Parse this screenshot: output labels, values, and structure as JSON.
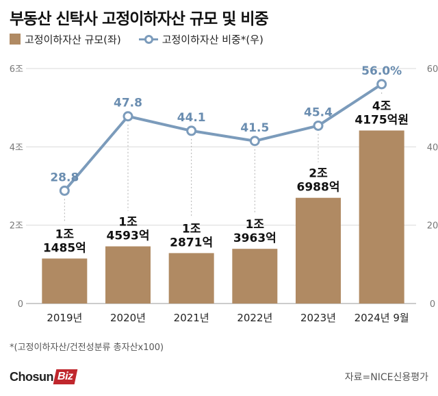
{
  "title": "부동산 신탁사 고정이하자산 규모 및 비중",
  "legend": {
    "bar_label": "고정이하자산 규모(좌)",
    "line_label": "고정이하자산 비중*(우)"
  },
  "footnote": "*(고정이하자산/건전성분류 총자산x100)",
  "source": "자료=NICE신용평가",
  "logo": {
    "part1": "Chosun",
    "part2": "Biz"
  },
  "colors": {
    "bar": "#B08A63",
    "line": "#7B9BBB",
    "line_label": "#6A8DB0",
    "grid": "#DADADA",
    "axis_text": "#777777"
  },
  "chart_data": {
    "type": "bar",
    "categories": [
      "2019년",
      "2020년",
      "2021년",
      "2022년",
      "2023년",
      "2024년 9월"
    ],
    "series": [
      {
        "name": "고정이하자산 규모(좌)",
        "type": "bar",
        "axis": "left",
        "values": [
          1.1485,
          1.4593,
          1.2871,
          1.3963,
          2.6988,
          4.4175
        ],
        "labels": [
          [
            "1조",
            "1485억"
          ],
          [
            "1조",
            "4593억"
          ],
          [
            "1조",
            "2871억"
          ],
          [
            "1조",
            "3963억"
          ],
          [
            "2조",
            "6988억"
          ],
          [
            "4조",
            "4175억원"
          ]
        ]
      },
      {
        "name": "고정이하자산 비중*(우)",
        "type": "line",
        "axis": "right",
        "values": [
          28.8,
          47.8,
          44.1,
          41.5,
          45.4,
          56.0
        ],
        "labels": [
          "28.8",
          "47.8",
          "44.1",
          "41.5",
          "45.4",
          "56.0%"
        ]
      }
    ],
    "y_left": {
      "ylim": [
        0,
        6
      ],
      "ticks": [
        0,
        2,
        4,
        6
      ],
      "tick_labels": [
        "0",
        "2조",
        "4조",
        "6조"
      ]
    },
    "y_right": {
      "ylim": [
        0,
        60
      ],
      "ticks": [
        0,
        20,
        40,
        60
      ],
      "tick_labels": [
        "0",
        "20",
        "40",
        "60"
      ]
    },
    "grid": true
  }
}
